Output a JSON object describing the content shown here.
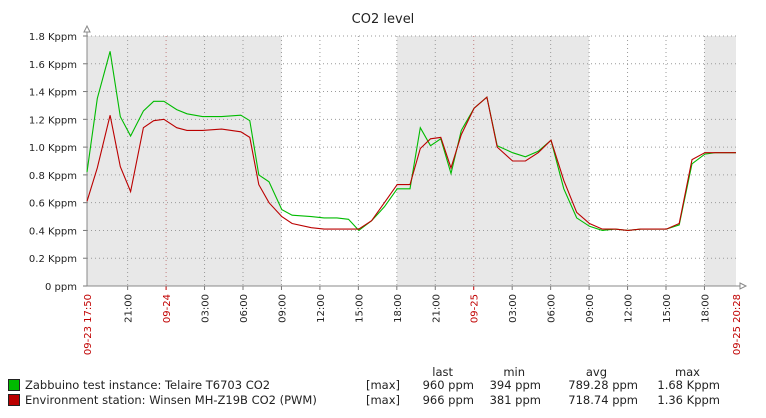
{
  "chart_data": {
    "type": "line",
    "title": "CO2 level",
    "y_ticks": [
      "0 ppm",
      "0.2 Kppm",
      "0.4 Kppm",
      "0.6 Kppm",
      "0.8 Kppm",
      "1.0 Kppm",
      "1.2 Kppm",
      "1.4 Kppm",
      "1.6 Kppm",
      "1.8 Kppm"
    ],
    "ylim": [
      0,
      1.8
    ],
    "y_unit": "Kppm",
    "x_start_label": "09-23 17:50",
    "x_end_label": "09-25 20:28",
    "x_range_hours": [
      0,
      50.63
    ],
    "x_ticks": [
      {
        "h": 3.17,
        "label": "21:00",
        "date": false
      },
      {
        "h": 6.17,
        "label": "09-24",
        "date": true
      },
      {
        "h": 9.17,
        "label": "03:00",
        "date": false
      },
      {
        "h": 12.17,
        "label": "06:00",
        "date": false
      },
      {
        "h": 15.17,
        "label": "09:00",
        "date": false
      },
      {
        "h": 18.17,
        "label": "12:00",
        "date": false
      },
      {
        "h": 21.17,
        "label": "15:00",
        "date": false
      },
      {
        "h": 24.17,
        "label": "18:00",
        "date": false
      },
      {
        "h": 27.17,
        "label": "21:00",
        "date": false
      },
      {
        "h": 30.17,
        "label": "09-25",
        "date": true
      },
      {
        "h": 33.17,
        "label": "03:00",
        "date": false
      },
      {
        "h": 36.17,
        "label": "06:00",
        "date": false
      },
      {
        "h": 39.17,
        "label": "09:00",
        "date": false
      },
      {
        "h": 42.17,
        "label": "12:00",
        "date": false
      },
      {
        "h": 45.17,
        "label": "15:00",
        "date": false
      },
      {
        "h": 48.17,
        "label": "18:00",
        "date": false
      }
    ],
    "night_bands_hours": [
      [
        0,
        15.17
      ],
      [
        24.17,
        39.17
      ],
      [
        48.17,
        50.63
      ]
    ],
    "grid": true,
    "series": [
      {
        "name": "Zabbuino test instance: Telaire T6703 CO2",
        "color": "#00bb00",
        "x": [
          0,
          0.8,
          1.8,
          2.6,
          3.4,
          4.4,
          5.2,
          6.0,
          7.0,
          7.8,
          9.0,
          10.5,
          12.0,
          12.7,
          13.4,
          14.2,
          15.2,
          16.0,
          17.5,
          18.5,
          19.5,
          20.4,
          21.2,
          22.2,
          23.2,
          24.2,
          25.2,
          26.0,
          26.8,
          27.6,
          28.4,
          29.2,
          30.2,
          31.2,
          32.0,
          33.2,
          34.2,
          35.2,
          36.2,
          37.2,
          38.2,
          39.2,
          40.2,
          41.2,
          42.2,
          43.2,
          44.2,
          45.2,
          46.2,
          47.2,
          48.2,
          49.0,
          50.63
        ],
        "values": [
          0.82,
          1.35,
          1.69,
          1.22,
          1.08,
          1.26,
          1.33,
          1.33,
          1.27,
          1.24,
          1.22,
          1.22,
          1.23,
          1.19,
          0.8,
          0.75,
          0.55,
          0.51,
          0.5,
          0.49,
          0.49,
          0.48,
          0.4,
          0.47,
          0.57,
          0.7,
          0.7,
          1.14,
          1.01,
          1.06,
          0.81,
          1.12,
          1.28,
          1.36,
          1.01,
          0.96,
          0.93,
          0.97,
          1.05,
          0.7,
          0.49,
          0.43,
          0.4,
          0.41,
          0.4,
          0.41,
          0.41,
          0.41,
          0.44,
          0.88,
          0.95,
          0.96,
          0.96
        ]
      },
      {
        "name": "Environment station: Winsen MH-Z19B CO2 (PWM)",
        "color": "#bb0000",
        "x": [
          0,
          0.8,
          1.8,
          2.6,
          3.4,
          4.4,
          5.2,
          6.0,
          7.0,
          7.8,
          9.0,
          10.5,
          12.0,
          12.7,
          13.4,
          14.2,
          15.2,
          16.0,
          17.5,
          18.5,
          19.5,
          20.4,
          21.2,
          22.2,
          23.2,
          24.2,
          25.2,
          26.0,
          26.8,
          27.6,
          28.4,
          29.2,
          30.2,
          31.2,
          32.0,
          33.2,
          34.2,
          35.2,
          36.2,
          37.2,
          38.2,
          39.2,
          40.2,
          41.2,
          42.2,
          43.2,
          44.2,
          45.2,
          46.2,
          47.2,
          48.2,
          49.0,
          50.63
        ],
        "values": [
          0.61,
          0.85,
          1.23,
          0.86,
          0.68,
          1.14,
          1.19,
          1.2,
          1.14,
          1.12,
          1.12,
          1.13,
          1.11,
          1.07,
          0.73,
          0.6,
          0.5,
          0.45,
          0.42,
          0.41,
          0.41,
          0.41,
          0.41,
          0.47,
          0.6,
          0.73,
          0.73,
          0.99,
          1.06,
          1.07,
          0.85,
          1.09,
          1.28,
          1.36,
          1.0,
          0.9,
          0.9,
          0.96,
          1.05,
          0.76,
          0.53,
          0.45,
          0.41,
          0.41,
          0.4,
          0.41,
          0.41,
          0.41,
          0.45,
          0.91,
          0.96,
          0.96,
          0.96
        ]
      }
    ]
  },
  "legend": {
    "headers": {
      "last": "last",
      "min": "min",
      "avg": "avg",
      "max": "max"
    },
    "items": [
      {
        "color": "#00bb00",
        "label": "Zabbuino test instance: Telaire T6703 CO2",
        "func": "[max]",
        "last": "960 ppm",
        "min": "394 ppm",
        "avg": "789.28 ppm",
        "max": "1.68 Kppm"
      },
      {
        "color": "#bb0000",
        "label": "Environment station: Winsen MH-Z19B CO2 (PWM)",
        "func": "[max]",
        "last": "966 ppm",
        "min": "381 ppm",
        "avg": "718.74 ppm",
        "max": "1.36 Kppm"
      }
    ]
  }
}
